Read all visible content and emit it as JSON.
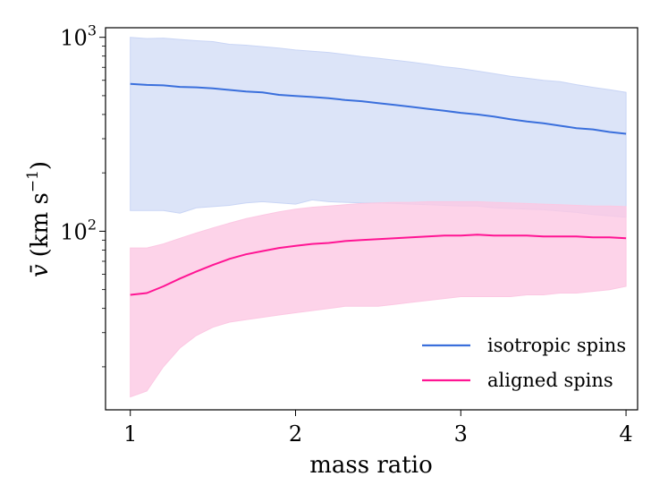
{
  "chart_data": {
    "type": "line",
    "title": "",
    "xlabel": "mass ratio",
    "ylabel": "v̄ (km s⁻¹)",
    "ylabel_main": "v̄",
    "ylabel_unit_open": "(km s",
    "ylabel_exp": "−1",
    "ylabel_close": ")",
    "yscale": "log",
    "xlim": [
      0.85,
      4.07
    ],
    "ylim": [
      12,
      1120
    ],
    "x_ticks": [
      1,
      2,
      3,
      4
    ],
    "x_tick_labels": [
      "1",
      "2",
      "3",
      "4"
    ],
    "y_ticks": [
      100,
      1000
    ],
    "y_tick_labels": [
      {
        "base": "10",
        "exp": "2"
      },
      {
        "base": "10",
        "exp": "3"
      }
    ],
    "legend_position": "lower-right",
    "x": [
      1.0,
      1.1,
      1.2,
      1.3,
      1.4,
      1.5,
      1.6,
      1.7,
      1.8,
      1.9,
      2.0,
      2.1,
      2.2,
      2.3,
      2.4,
      2.5,
      2.6,
      2.7,
      2.8,
      2.9,
      3.0,
      3.1,
      3.2,
      3.3,
      3.4,
      3.5,
      3.6,
      3.7,
      3.8,
      3.9,
      4.0
    ],
    "series": [
      {
        "name": "isotropic spins",
        "color": "#3a6fdc",
        "band_color": "#c9d5f5",
        "values": [
          575,
          568,
          565,
          555,
          552,
          545,
          535,
          525,
          520,
          505,
          498,
          492,
          485,
          475,
          468,
          458,
          448,
          438,
          428,
          418,
          408,
          400,
          390,
          378,
          368,
          360,
          350,
          340,
          335,
          325,
          318
        ],
        "lower": [
          128,
          128,
          128,
          124,
          132,
          134,
          136,
          140,
          142,
          140,
          138,
          145,
          142,
          141,
          140,
          140,
          139,
          138,
          137,
          136,
          135,
          135,
          132,
          131,
          130,
          129,
          127,
          125,
          122,
          120,
          118
        ],
        "upper": [
          1000,
          985,
          990,
          975,
          960,
          950,
          920,
          910,
          895,
          880,
          860,
          848,
          835,
          815,
          795,
          780,
          762,
          745,
          725,
          705,
          690,
          670,
          650,
          630,
          615,
          600,
          590,
          570,
          552,
          537,
          520
        ]
      },
      {
        "name": "aligned spins",
        "color": "#ff1493",
        "band_color": "#fcc8e3",
        "values": [
          47,
          48,
          52,
          57,
          62,
          67,
          72,
          76,
          79,
          82,
          84,
          86,
          87,
          89,
          90,
          91,
          92,
          93,
          94,
          95,
          95,
          96,
          95,
          95,
          95,
          94,
          94,
          94,
          93,
          93,
          92
        ],
        "lower": [
          14,
          15,
          20,
          25,
          29,
          32,
          34,
          35,
          36,
          37,
          38,
          39,
          40,
          41,
          41,
          41,
          42,
          43,
          44,
          45,
          46,
          46,
          46,
          46,
          47,
          47,
          48,
          48,
          49,
          50,
          52
        ],
        "upper": [
          82,
          82,
          86,
          92,
          98,
          104,
          110,
          116,
          121,
          126,
          130,
          133,
          135,
          137,
          139,
          140,
          141,
          141,
          142,
          142,
          142,
          142,
          141,
          140,
          139,
          138,
          137,
          136,
          135,
          135,
          134
        ]
      }
    ]
  }
}
